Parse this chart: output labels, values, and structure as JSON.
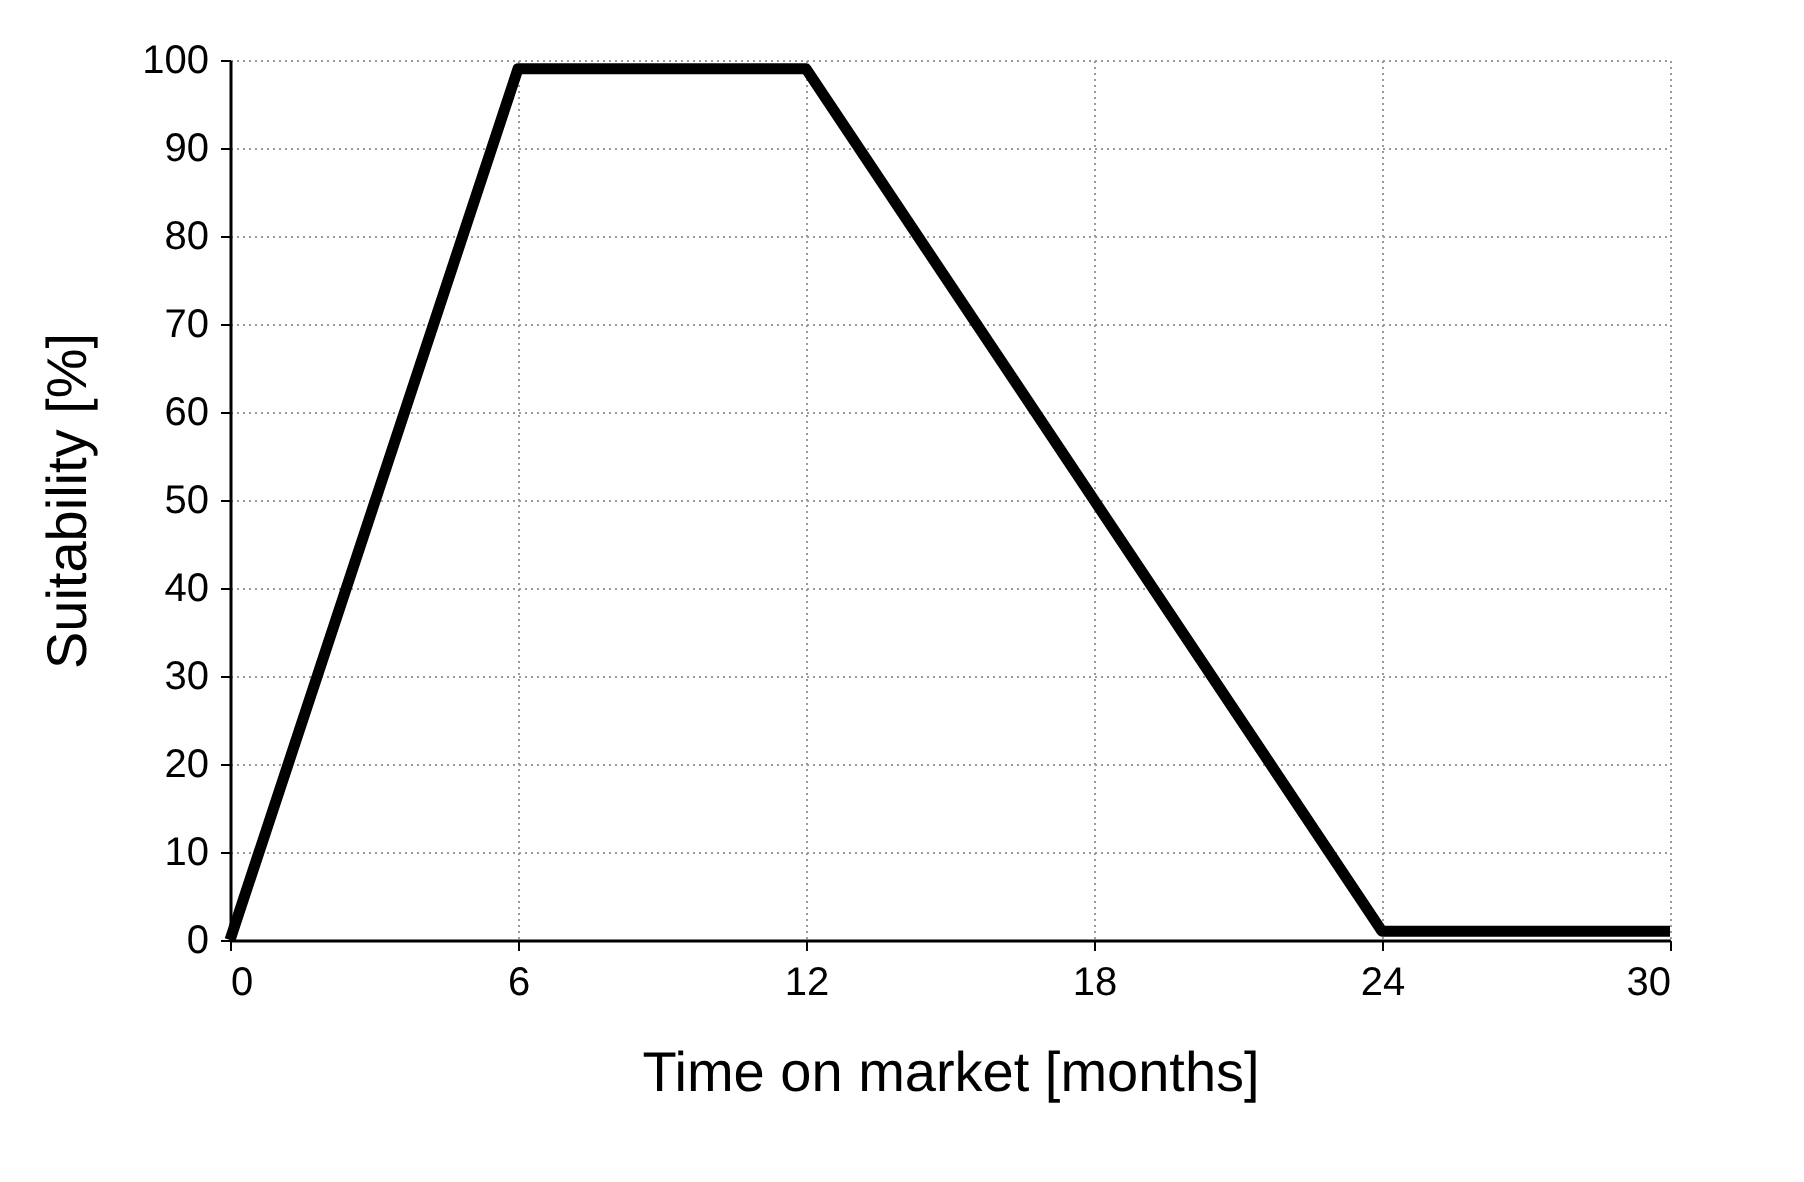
{
  "chart_data": {
    "type": "line",
    "xlabel": "Time on market  [months]",
    "ylabel": "Suitability [%]",
    "x": [
      0,
      6,
      12,
      24,
      30
    ],
    "series": [
      {
        "color": "#000000",
        "values": [
          0,
          99,
          99,
          1,
          1
        ]
      }
    ],
    "xlim": [
      0,
      30
    ],
    "xticks": [
      0,
      6,
      12,
      18,
      24,
      30
    ],
    "ylim": [
      0,
      100
    ],
    "yticks": [
      0,
      10,
      20,
      30,
      40,
      50,
      60,
      70,
      80,
      90,
      100
    ],
    "grid": true,
    "marker": "none",
    "line_style": "solid"
  }
}
